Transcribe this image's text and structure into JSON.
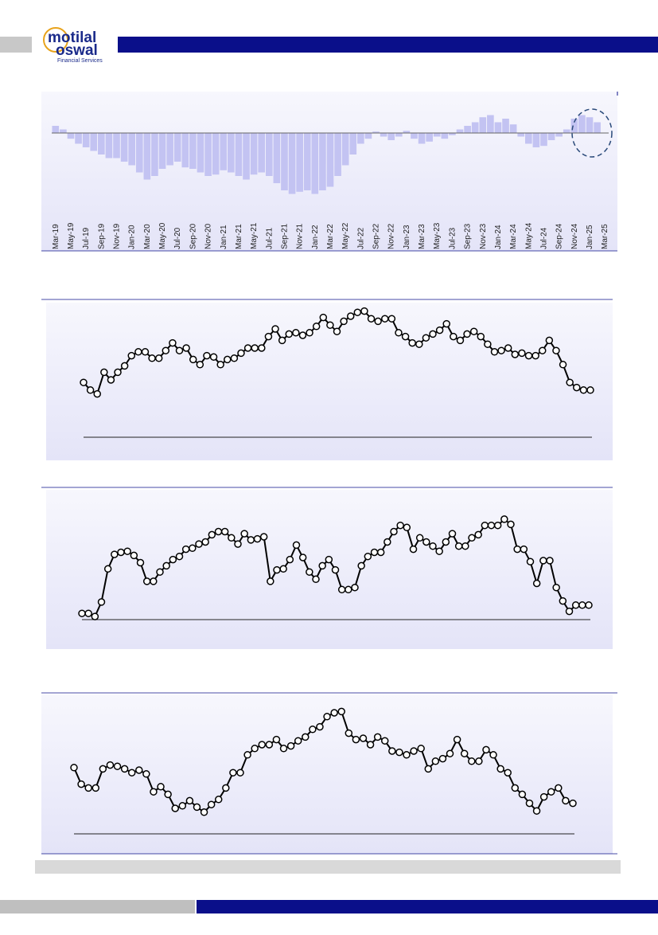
{
  "header": {
    "logo": [
      "motilal",
      "oswal",
      "Financial Services"
    ]
  },
  "chart_data": [
    {
      "type": "bar",
      "color": "#c3c3f2",
      "ylim": [
        -100,
        50
      ],
      "categories": [
        "Mar-19",
        null,
        "May-19",
        null,
        "Jul-19",
        null,
        "Sep-19",
        null,
        "Nov-19",
        null,
        "Jan-20",
        null,
        "Mar-20",
        null,
        "May-20",
        null,
        "Jul-20",
        null,
        "Sep-20",
        null,
        "Nov-20",
        null,
        "Jan-21",
        null,
        "Mar-21",
        null,
        "May-21",
        null,
        "Jul-21",
        null,
        "Sep-21",
        null,
        "Nov-21",
        null,
        "Jan-22",
        null,
        "Mar-22",
        null,
        "May-22",
        null,
        "Jul-22",
        null,
        "Sep-22",
        null,
        "Nov-22",
        null,
        "Jan-23",
        null,
        "Mar-23",
        null,
        "May-23",
        null,
        "Jul-23",
        null,
        "Sep-23",
        null,
        "Nov-23",
        null,
        "Jan-24",
        null,
        "Mar-24",
        null,
        "May-24",
        null,
        "Jul-24",
        null,
        "Sep-24",
        null,
        "Nov-24",
        null,
        "Jan-25",
        null,
        "Mar-25"
      ],
      "values": [
        10,
        5,
        -8,
        -15,
        -20,
        -25,
        -30,
        -35,
        -35,
        -40,
        -45,
        -55,
        -65,
        -60,
        -50,
        -45,
        -40,
        -48,
        -50,
        -55,
        -60,
        -58,
        -52,
        -55,
        -60,
        -65,
        -58,
        -55,
        -60,
        -70,
        -80,
        -85,
        -82,
        -80,
        -85,
        -80,
        -75,
        -60,
        -45,
        -30,
        -15,
        -8,
        2,
        -5,
        -10,
        -5,
        3,
        -8,
        -15,
        -12,
        -5,
        -8,
        -3,
        5,
        10,
        15,
        22,
        25,
        15,
        20,
        12,
        -5,
        -15,
        -20,
        -18,
        -10,
        -5,
        5,
        20,
        25,
        22,
        15,
        0
      ]
    },
    {
      "type": "line",
      "color": "#000000",
      "ylim": [
        0,
        100
      ],
      "values": [
        43,
        37,
        34,
        51,
        45,
        51,
        56,
        64,
        67,
        67,
        62,
        62,
        68,
        74,
        68,
        70,
        61,
        57,
        64,
        63,
        57,
        61,
        62,
        66,
        70,
        70,
        70,
        79,
        85,
        76,
        81,
        82,
        80,
        82,
        87,
        94,
        88,
        83,
        91,
        95,
        98,
        99,
        93,
        91,
        93,
        93,
        82,
        79,
        74,
        73,
        78,
        81,
        84,
        89,
        79,
        76,
        81,
        83,
        79,
        73,
        67,
        68,
        70,
        65,
        66,
        64,
        64,
        68,
        76,
        68,
        57,
        43,
        39,
        37,
        37
      ]
    },
    {
      "type": "line",
      "color": "#000000",
      "ylim": [
        0,
        100
      ],
      "values": [
        6,
        6,
        3,
        17,
        49,
        63,
        65,
        66,
        62,
        55,
        37,
        37,
        46,
        52,
        58,
        61,
        68,
        69,
        73,
        75,
        82,
        85,
        85,
        79,
        73,
        83,
        77,
        78,
        80,
        37,
        48,
        49,
        58,
        72,
        60,
        46,
        39,
        52,
        58,
        48,
        29,
        29,
        31,
        52,
        61,
        65,
        65,
        75,
        85,
        91,
        89,
        68,
        79,
        75,
        71,
        66,
        75,
        83,
        71,
        71,
        79,
        82,
        91,
        91,
        91,
        97,
        92,
        68,
        68,
        56,
        35,
        57,
        57,
        31,
        18,
        8,
        14,
        14,
        14
      ]
    },
    {
      "type": "line",
      "color": "#000000",
      "ylim": [
        0,
        100
      ],
      "values": [
        52,
        39,
        36,
        36,
        51,
        54,
        53,
        51,
        48,
        50,
        47,
        33,
        37,
        31,
        20,
        22,
        26,
        21,
        17,
        23,
        27,
        36,
        48,
        48,
        62,
        67,
        70,
        70,
        74,
        67,
        69,
        73,
        76,
        82,
        84,
        92,
        95,
        96,
        79,
        74,
        75,
        70,
        76,
        73,
        65,
        64,
        62,
        65,
        67,
        51,
        57,
        59,
        63,
        74,
        63,
        57,
        57,
        66,
        62,
        51,
        48,
        36,
        31,
        24,
        18,
        29,
        33,
        36,
        26,
        24
      ]
    }
  ]
}
